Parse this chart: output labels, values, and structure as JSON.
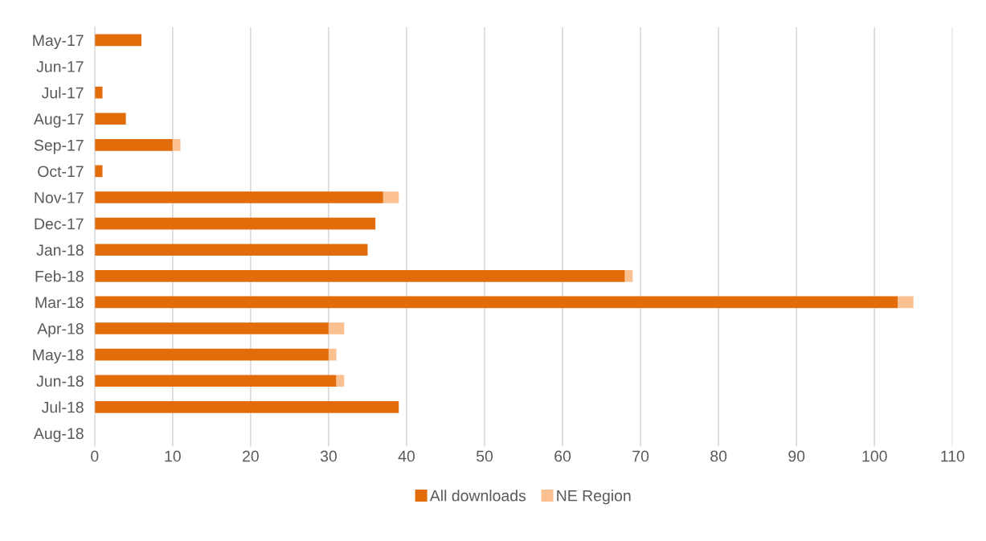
{
  "chart_data": {
    "type": "bar",
    "orientation": "horizontal",
    "stacked": true,
    "categories": [
      "May-17",
      "Jun-17",
      "Jul-17",
      "Aug-17",
      "Sep-17",
      "Oct-17",
      "Nov-17",
      "Dec-17",
      "Jan-18",
      "Feb-18",
      "Mar-18",
      "Apr-18",
      "May-18",
      "Jun-18",
      "Jul-18",
      "Aug-18"
    ],
    "series": [
      {
        "name": "All downloads",
        "color": "#e36c0a",
        "values": [
          6,
          null,
          1,
          4,
          10,
          1,
          37,
          36,
          35,
          68,
          103,
          30,
          30,
          31,
          39,
          null
        ]
      },
      {
        "name": "NE Region",
        "color": "#fac090",
        "values": [
          null,
          null,
          null,
          null,
          1,
          null,
          2,
          null,
          null,
          1,
          2,
          2,
          1,
          1,
          null,
          null
        ]
      }
    ],
    "xlim": [
      0,
      110
    ],
    "xticks": [
      0,
      10,
      20,
      30,
      40,
      50,
      60,
      70,
      80,
      90,
      100,
      110
    ],
    "grid": "x",
    "legend": "bottom"
  }
}
